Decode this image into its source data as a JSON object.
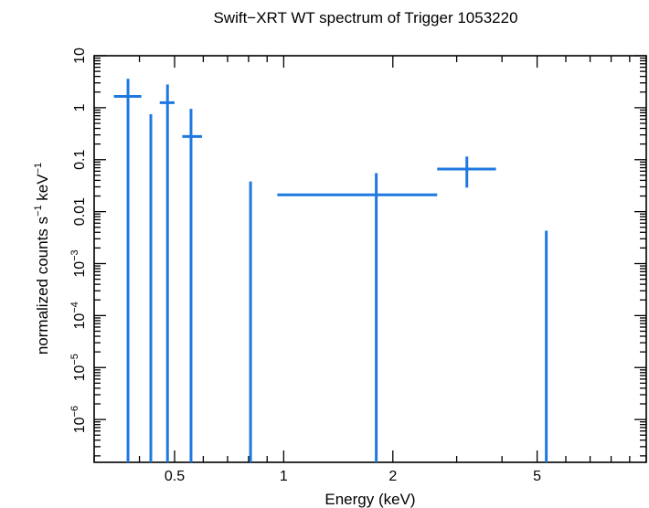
{
  "chart_data": {
    "type": "scatter",
    "title": "Swift−XRT WT spectrum of Trigger 1053220",
    "xlabel": "Energy (keV)",
    "ylabel_parts": {
      "main": "normalized counts s",
      "exp1": "−1",
      "mid": " keV",
      "exp2": "−1"
    },
    "x_scale": "log",
    "y_scale": "log",
    "xlim": [
      0.3,
      10
    ],
    "ylim": [
      1.5e-07,
      10
    ],
    "x_ticks": [
      {
        "value": 0.5,
        "label": "0.5"
      },
      {
        "value": 1,
        "label": "1"
      },
      {
        "value": 2,
        "label": "2"
      },
      {
        "value": 5,
        "label": "5"
      }
    ],
    "y_ticks": [
      {
        "value": 10,
        "base": "10",
        "exp": ""
      },
      {
        "value": 1,
        "base": "1",
        "exp": ""
      },
      {
        "value": 0.1,
        "base": "0.1",
        "exp": ""
      },
      {
        "value": 0.01,
        "base": "0.01",
        "exp": ""
      },
      {
        "value": 0.001,
        "base": "10",
        "exp": "−3"
      },
      {
        "value": 0.0001,
        "base": "10",
        "exp": "−4"
      },
      {
        "value": 1e-05,
        "base": "10",
        "exp": "−5"
      },
      {
        "value": 1e-06,
        "base": "10",
        "exp": "−6"
      }
    ],
    "color": "#1e78e0",
    "grid": false,
    "points": [
      {
        "x": 0.372,
        "xlo": 0.34,
        "xhi": 0.405,
        "y": 1.65,
        "ylo": 1.5e-07,
        "yhi": 3.6
      },
      {
        "x": 0.43,
        "xlo": 0.43,
        "xhi": 0.43,
        "y": 0.75,
        "ylo": 1.5e-07,
        "yhi": 0.75
      },
      {
        "x": 0.478,
        "xlo": 0.455,
        "xhi": 0.5,
        "y": 1.25,
        "ylo": 1.5e-07,
        "yhi": 2.8
      },
      {
        "x": 0.555,
        "xlo": 0.525,
        "xhi": 0.595,
        "y": 0.28,
        "ylo": 1.5e-07,
        "yhi": 0.95
      },
      {
        "x": 0.81,
        "xlo": 0.81,
        "xhi": 0.81,
        "y": 0.038,
        "ylo": 1.5e-07,
        "yhi": 0.038
      },
      {
        "x": 1.8,
        "xlo": 0.96,
        "xhi": 2.65,
        "y": 0.021,
        "ylo": 1.5e-07,
        "yhi": 0.055
      },
      {
        "x": 3.2,
        "xlo": 2.65,
        "xhi": 3.85,
        "y": 0.066,
        "ylo": 0.029,
        "yhi": 0.115
      },
      {
        "x": 5.3,
        "xlo": 5.3,
        "xhi": 5.3,
        "y": 0.0043,
        "ylo": 1.5e-07,
        "yhi": 0.0043
      }
    ]
  }
}
